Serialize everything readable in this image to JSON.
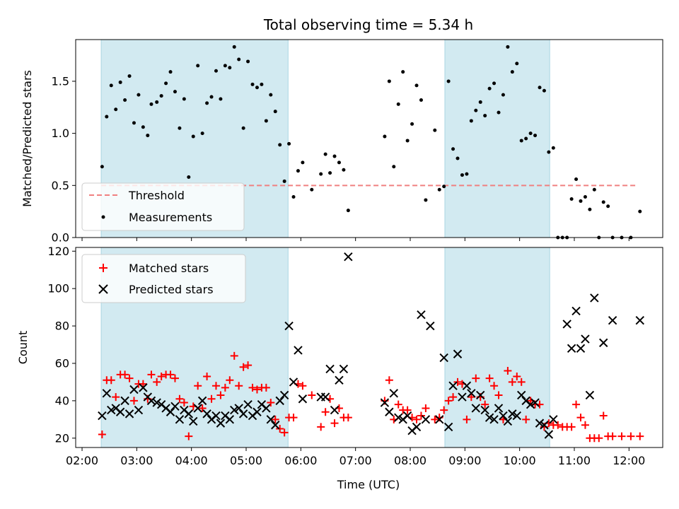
{
  "chart_data": [
    {
      "type": "scatter",
      "title": "Total observing time = 5.34 h",
      "ylabel": "Matched/Predicted stars",
      "xlabel": "",
      "ylim": [
        0,
        1.9
      ],
      "yticks": [
        0.0,
        0.5,
        1.0,
        1.5
      ],
      "ytick_labels": [
        "0.0",
        "0.5",
        "1.0",
        "1.5"
      ],
      "xticks": [
        "02:00",
        "03:00",
        "04:00",
        "05:00",
        "06:00",
        "07:00",
        "08:00",
        "09:00",
        "10:00",
        "11:00",
        "12:00"
      ],
      "xlim": [
        "01:53",
        "12:37"
      ],
      "shaded_regions": [
        [
          "02:21",
          "05:46"
        ],
        [
          "08:38",
          "10:33"
        ]
      ],
      "shade_color": "#d2eaf1",
      "legend_position": "lower-left",
      "threshold": {
        "name": "Threshold",
        "value": 0.5,
        "x_range": [
          "02:21",
          "12:08"
        ],
        "color": "#f08080"
      },
      "series": [
        {
          "name": "Measurements",
          "color": "#000000",
          "marker": "dot",
          "x": [
            "02:22",
            "02:27",
            "02:32",
            "02:37",
            "02:42",
            "02:47",
            "02:52",
            "02:57",
            "03:02",
            "03:07",
            "03:12",
            "03:16",
            "03:22",
            "03:27",
            "03:32",
            "03:37",
            "03:42",
            "03:47",
            "03:52",
            "03:57",
            "04:02",
            "04:07",
            "04:12",
            "04:17",
            "04:22",
            "04:27",
            "04:32",
            "04:37",
            "04:42",
            "04:47",
            "04:52",
            "04:57",
            "05:02",
            "05:07",
            "05:12",
            "05:17",
            "05:22",
            "05:27",
            "05:32",
            "05:37",
            "05:42",
            "05:47",
            "05:52",
            "05:57",
            "06:02",
            "06:12",
            "06:22",
            "06:27",
            "06:32",
            "06:37",
            "06:42",
            "06:47",
            "06:52",
            "07:32",
            "07:37",
            "07:42",
            "07:47",
            "07:52",
            "07:57",
            "08:02",
            "08:07",
            "08:12",
            "08:17",
            "08:27",
            "08:32",
            "08:37",
            "08:42",
            "08:47",
            "08:52",
            "08:57",
            "09:02",
            "09:07",
            "09:12",
            "09:17",
            "09:22",
            "09:27",
            "09:32",
            "09:37",
            "09:42",
            "09:47",
            "09:52",
            "09:57",
            "10:02",
            "10:07",
            "10:12",
            "10:17",
            "10:22",
            "10:27",
            "10:32",
            "10:37",
            "10:42",
            "10:47",
            "10:52",
            "10:57",
            "11:02",
            "11:07",
            "11:12",
            "11:17",
            "11:22",
            "11:27",
            "11:32",
            "11:37",
            "11:42",
            "11:52",
            "12:02",
            "12:12"
          ],
          "y": [
            0.68,
            1.16,
            1.46,
            1.23,
            1.49,
            1.32,
            1.55,
            1.1,
            1.37,
            1.06,
            0.98,
            1.28,
            1.3,
            1.36,
            1.48,
            1.59,
            1.4,
            1.05,
            1.33,
            0.58,
            0.97,
            1.65,
            1.0,
            1.29,
            1.35,
            1.6,
            1.33,
            1.65,
            1.63,
            1.83,
            1.71,
            1.05,
            1.69,
            1.47,
            1.44,
            1.47,
            1.12,
            1.37,
            1.21,
            0.89,
            0.54,
            0.9,
            0.39,
            0.64,
            0.72,
            0.46,
            0.61,
            0.8,
            0.62,
            0.78,
            0.72,
            0.65,
            0.26,
            0.97,
            1.5,
            0.68,
            1.28,
            1.59,
            0.93,
            1.09,
            1.46,
            1.32,
            0.36,
            1.03,
            0.46,
            0.49,
            1.5,
            0.85,
            0.76,
            0.6,
            0.61,
            1.12,
            1.22,
            1.3,
            1.17,
            1.43,
            1.48,
            1.2,
            1.37,
            1.83,
            1.59,
            1.67,
            0.93,
            0.95,
            1.0,
            0.98,
            1.44,
            1.41,
            0.82,
            0.86,
            0.0,
            0.0,
            0.0,
            0.37,
            0.56,
            0.35,
            0.39,
            0.27,
            0.46,
            0.0,
            0.34,
            0.3,
            0.0,
            0.0,
            0.0,
            0.25
          ]
        }
      ]
    },
    {
      "type": "scatter",
      "title": "",
      "xlabel": "Time (UTC)",
      "ylabel": "Count",
      "ylim": [
        15,
        122
      ],
      "yticks": [
        20,
        40,
        60,
        80,
        100,
        120
      ],
      "ytick_labels": [
        "20",
        "40",
        "60",
        "80",
        "100",
        "120"
      ],
      "xticks": [
        "02:00",
        "03:00",
        "04:00",
        "05:00",
        "06:00",
        "07:00",
        "08:00",
        "09:00",
        "10:00",
        "11:00",
        "12:00"
      ],
      "xtick_labels": [
        "02:00",
        "03:00",
        "04:00",
        "05:00",
        "06:00",
        "07:00",
        "08:00",
        "09:00",
        "10:00",
        "11:00",
        "12:00"
      ],
      "xlim": [
        "01:53",
        "12:37"
      ],
      "shaded_regions": [
        [
          "02:21",
          "05:46"
        ],
        [
          "08:38",
          "10:33"
        ]
      ],
      "shade_color": "#d2eaf1",
      "legend_position": "upper-left",
      "series": [
        {
          "name": "Matched stars",
          "color": "#ff0000",
          "marker": "plus",
          "x": [
            "02:22",
            "02:27",
            "02:32",
            "02:37",
            "02:42",
            "02:47",
            "02:52",
            "02:57",
            "03:02",
            "03:07",
            "03:12",
            "03:16",
            "03:22",
            "03:27",
            "03:32",
            "03:37",
            "03:42",
            "03:47",
            "03:52",
            "03:57",
            "04:02",
            "04:07",
            "04:12",
            "04:17",
            "04:22",
            "04:27",
            "04:32",
            "04:37",
            "04:42",
            "04:47",
            "04:52",
            "04:57",
            "05:02",
            "05:07",
            "05:12",
            "05:17",
            "05:22",
            "05:27",
            "05:32",
            "05:37",
            "05:42",
            "05:47",
            "05:52",
            "05:57",
            "06:02",
            "06:12",
            "06:22",
            "06:27",
            "06:32",
            "06:37",
            "06:42",
            "06:47",
            "06:52",
            "07:32",
            "07:37",
            "07:42",
            "07:47",
            "07:52",
            "07:57",
            "08:02",
            "08:07",
            "08:12",
            "08:17",
            "08:27",
            "08:32",
            "08:37",
            "08:42",
            "08:47",
            "08:52",
            "08:57",
            "09:02",
            "09:07",
            "09:12",
            "09:17",
            "09:22",
            "09:27",
            "09:32",
            "09:37",
            "09:42",
            "09:47",
            "09:52",
            "09:57",
            "10:02",
            "10:07",
            "10:12",
            "10:17",
            "10:22",
            "10:27",
            "10:32",
            "10:37",
            "10:42",
            "10:47",
            "10:52",
            "10:57",
            "11:02",
            "11:07",
            "11:12",
            "11:17",
            "11:22",
            "11:27",
            "11:32",
            "11:37",
            "11:42",
            "11:52",
            "12:02",
            "12:12"
          ],
          "y": [
            22,
            51,
            51,
            42,
            54,
            54,
            52,
            40,
            49,
            49,
            41,
            54,
            50,
            53,
            54,
            54,
            52,
            41,
            39,
            21,
            37,
            48,
            36,
            53,
            41,
            48,
            43,
            47,
            51,
            64,
            48,
            58,
            59,
            47,
            46,
            47,
            47,
            39,
            30,
            25,
            23,
            31,
            31,
            49,
            48,
            43,
            26,
            34,
            41,
            28,
            36,
            31,
            31,
            40,
            51,
            30,
            38,
            35,
            35,
            31,
            30,
            32,
            36,
            30,
            31,
            35,
            40,
            42,
            50,
            49,
            30,
            42,
            52,
            42,
            38,
            52,
            48,
            43,
            30,
            56,
            50,
            53,
            50,
            30,
            40,
            38,
            38,
            26,
            28,
            27,
            27,
            26,
            26,
            26,
            38,
            31,
            27,
            20,
            20,
            20,
            32,
            21,
            21,
            21,
            21,
            21
          ],
          "note_index": "paired x/y"
        },
        {
          "name": "Predicted stars",
          "color": "#000000",
          "marker": "x",
          "x": [
            "02:22",
            "02:27",
            "02:32",
            "02:37",
            "02:42",
            "02:47",
            "02:52",
            "02:57",
            "03:02",
            "03:07",
            "03:12",
            "03:16",
            "03:22",
            "03:27",
            "03:32",
            "03:37",
            "03:42",
            "03:47",
            "03:52",
            "03:57",
            "04:02",
            "04:07",
            "04:12",
            "04:17",
            "04:22",
            "04:27",
            "04:32",
            "04:37",
            "04:42",
            "04:47",
            "04:52",
            "04:57",
            "05:02",
            "05:07",
            "05:12",
            "05:17",
            "05:22",
            "05:27",
            "05:32",
            "05:37",
            "05:42",
            "05:47",
            "05:52",
            "05:57",
            "06:02",
            "06:22",
            "06:27",
            "06:32",
            "06:37",
            "06:42",
            "06:47",
            "06:52",
            "07:32",
            "07:37",
            "07:42",
            "07:47",
            "07:52",
            "07:57",
            "08:02",
            "08:07",
            "08:12",
            "08:17",
            "08:22",
            "08:32",
            "08:37",
            "08:42",
            "08:47",
            "08:52",
            "08:57",
            "09:02",
            "09:07",
            "09:12",
            "09:17",
            "09:22",
            "09:27",
            "09:32",
            "09:37",
            "09:42",
            "09:47",
            "09:52",
            "09:57",
            "10:02",
            "10:07",
            "10:12",
            "10:17",
            "10:22",
            "10:27",
            "10:32",
            "10:37",
            "10:52",
            "10:57",
            "11:02",
            "11:07",
            "11:12",
            "11:17",
            "11:22",
            "11:32",
            "11:42",
            "12:12"
          ],
          "y": [
            32,
            44,
            35,
            36,
            34,
            40,
            33,
            46,
            35,
            47,
            42,
            40,
            39,
            38,
            36,
            34,
            37,
            30,
            35,
            33,
            29,
            36,
            40,
            33,
            30,
            32,
            28,
            32,
            30,
            35,
            36,
            33,
            38,
            32,
            34,
            38,
            36,
            30,
            27,
            40,
            43,
            80,
            50,
            67,
            41,
            42,
            42,
            57,
            35,
            51,
            57,
            117,
            39,
            34,
            44,
            31,
            30,
            32,
            24,
            26,
            86,
            30,
            80,
            30,
            63,
            26,
            48,
            65,
            42,
            48,
            44,
            36,
            43,
            35,
            31,
            30,
            36,
            32,
            29,
            33,
            32,
            43,
            40,
            38,
            39,
            28,
            27,
            22,
            30,
            81,
            68,
            88,
            68,
            73,
            43,
            95,
            71,
            83,
            83
          ]
        }
      ]
    }
  ]
}
